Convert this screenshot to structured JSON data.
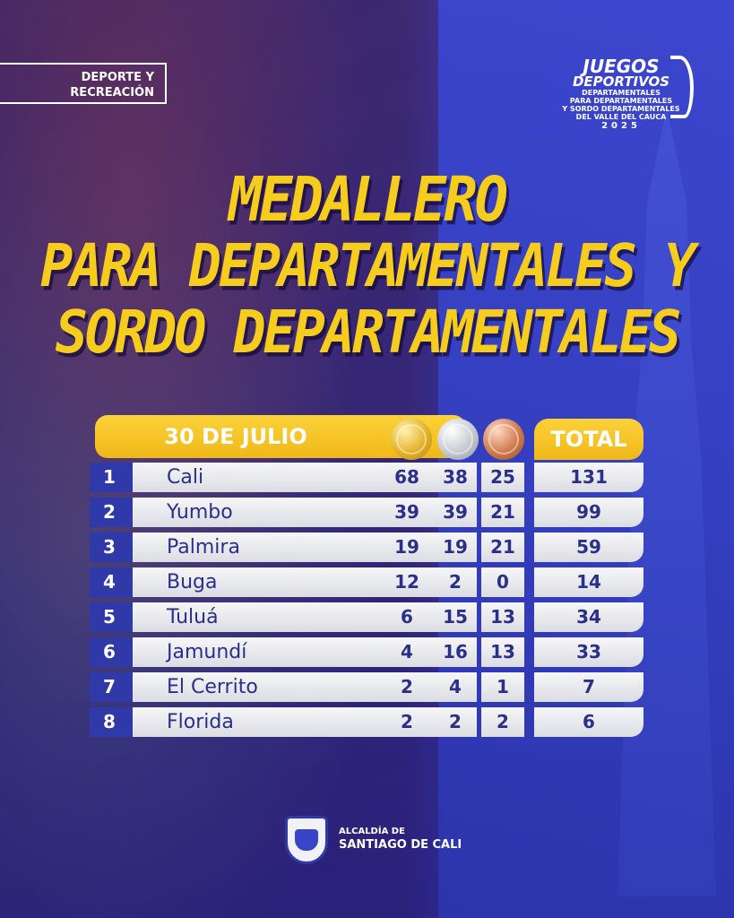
{
  "badge": {
    "line1": "DEPORTE Y",
    "line2": "RECREACIÓN"
  },
  "event_logo": {
    "line1": "JUEGOS",
    "line2": "DEPORTIVOS",
    "line3": "DEPARTAMENTALES",
    "line4": "PARA DEPARTAMENTALES",
    "line5": "Y SORDO DEPARTAMENTALES",
    "line6": "DEL VALLE DEL CAUCA",
    "year": "2025"
  },
  "headline": {
    "line1": "MEDALLERO",
    "line2": "PARA DEPARTAMENTALES Y",
    "line3": "SORDO DEPARTAMENTALES"
  },
  "table": {
    "date_label": "30 DE JULIO",
    "total_label": "TOTAL",
    "colors": {
      "gold": "#e4b22a",
      "silver": "#c6c9d0",
      "bronze": "#d07a4c",
      "accent": "#f7cd1d"
    },
    "rows": [
      {
        "rank": "1",
        "name": "Cali",
        "gold": "68",
        "silver": "38",
        "bronze": "25",
        "total": "131"
      },
      {
        "rank": "2",
        "name": "Yumbo",
        "gold": "39",
        "silver": "39",
        "bronze": "21",
        "total": "99"
      },
      {
        "rank": "3",
        "name": "Palmira",
        "gold": "19",
        "silver": "19",
        "bronze": "21",
        "total": "59"
      },
      {
        "rank": "4",
        "name": "Buga",
        "gold": "12",
        "silver": "2",
        "bronze": "0",
        "total": "14"
      },
      {
        "rank": "5",
        "name": "Tuluá",
        "gold": "6",
        "silver": "15",
        "bronze": "13",
        "total": "34"
      },
      {
        "rank": "6",
        "name": "Jamundí",
        "gold": "4",
        "silver": "16",
        "bronze": "13",
        "total": "33"
      },
      {
        "rank": "7",
        "name": "El Cerrito",
        "gold": "2",
        "silver": "4",
        "bronze": "1",
        "total": "7"
      },
      {
        "rank": "8",
        "name": "Florida",
        "gold": "2",
        "silver": "2",
        "bronze": "2",
        "total": "6"
      }
    ]
  },
  "footer": {
    "line1": "ALCALDÍA DE",
    "line2": "SANTIAGO DE CALI"
  }
}
